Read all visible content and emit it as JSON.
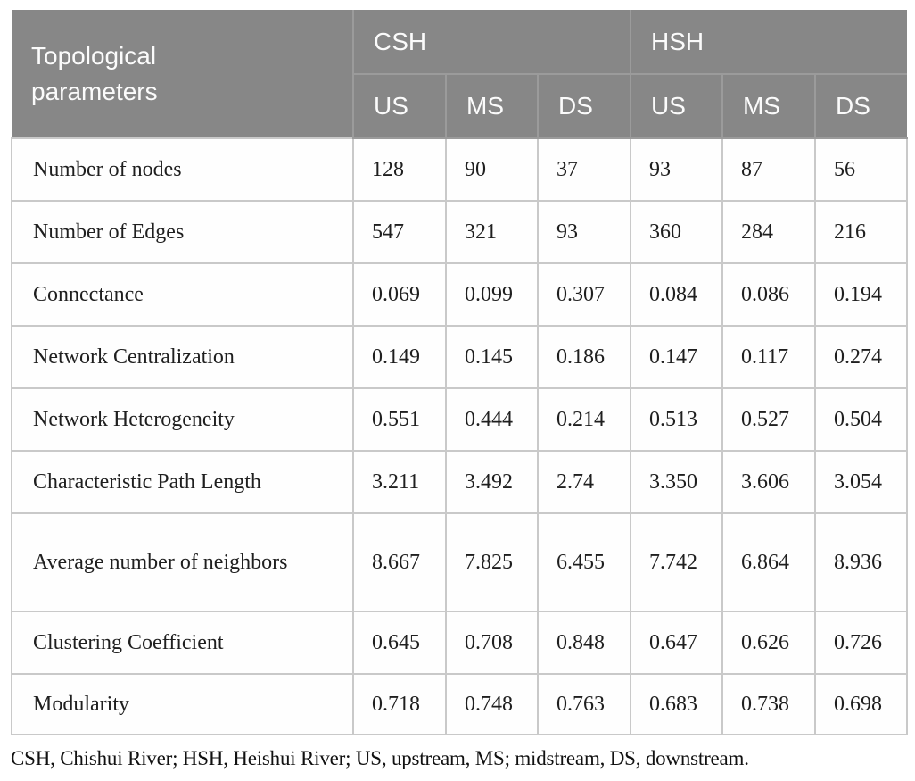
{
  "table": {
    "corner_header": "Topological parameters",
    "groups": [
      {
        "label": "CSH",
        "columns": [
          "US",
          "MS",
          "DS"
        ]
      },
      {
        "label": "HSH",
        "columns": [
          "US",
          "MS",
          "DS"
        ]
      }
    ],
    "rows": [
      {
        "label": "Number of nodes",
        "values": [
          "128",
          "90",
          "37",
          "93",
          "87",
          "56"
        ]
      },
      {
        "label": "Number of Edges",
        "values": [
          "547",
          "321",
          "93",
          "360",
          "284",
          "216"
        ]
      },
      {
        "label": "Connectance",
        "values": [
          "0.069",
          "0.099",
          "0.307",
          "0.084",
          "0.086",
          "0.194"
        ]
      },
      {
        "label": "Network Centralization",
        "values": [
          "0.149",
          "0.145",
          "0.186",
          "0.147",
          "0.117",
          "0.274"
        ]
      },
      {
        "label": "Network Heterogeneity",
        "values": [
          "0.551",
          "0.444",
          "0.214",
          "0.513",
          "0.527",
          "0.504"
        ]
      },
      {
        "label": "Characteristic Path Length",
        "values": [
          "3.211",
          "3.492",
          "2.74",
          "3.350",
          "3.606",
          "3.054"
        ]
      },
      {
        "label": "Average number of neighbors",
        "values": [
          "8.667",
          "7.825",
          "6.455",
          "7.742",
          "6.864",
          "8.936"
        ],
        "tall": true
      },
      {
        "label": "Clustering Coefficient",
        "values": [
          "0.645",
          "0.708",
          "0.848",
          "0.647",
          "0.626",
          "0.726"
        ]
      },
      {
        "label": "Modularity",
        "values": [
          "0.718",
          "0.748",
          "0.763",
          "0.683",
          "0.738",
          "0.698"
        ]
      }
    ]
  },
  "footnote": "CSH, Chishui River; HSH, Heishui River; US, upstream, MS; midstream, DS, downstream.",
  "colors": {
    "header_bg": "#878787",
    "header_border": "#9b9b9b",
    "body_border": "#c9c9c9",
    "header_text": "#fbfbfb",
    "body_text": "#1f1f1f"
  }
}
